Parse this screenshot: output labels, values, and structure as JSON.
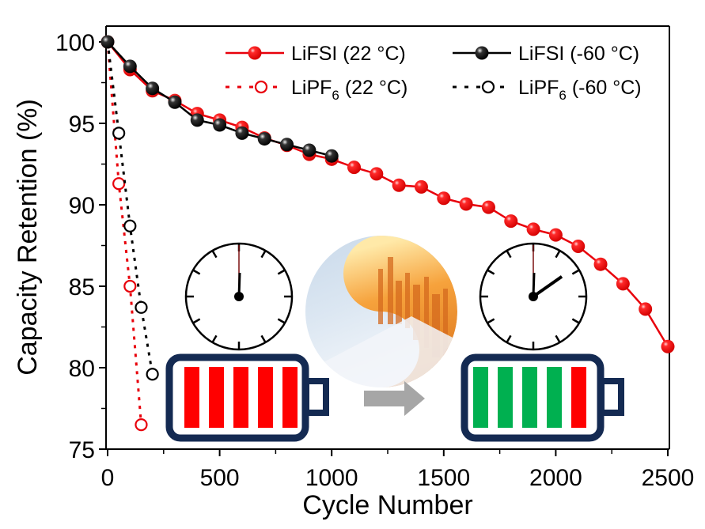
{
  "chart_data": {
    "type": "line",
    "title": "",
    "xlabel": "Cycle Number",
    "ylabel": "Capacity Retention (%)",
    "xlim": [
      0,
      2500
    ],
    "ylim": [
      75,
      100.5
    ],
    "x_ticks": [
      0,
      500,
      1000,
      1500,
      2000,
      2500
    ],
    "x_tick_labels": [
      "0",
      "500",
      "1000",
      "1500",
      "2000",
      "2500"
    ],
    "y_ticks": [
      75,
      80,
      85,
      90,
      95,
      100
    ],
    "y_tick_labels": [
      "75",
      "80",
      "85",
      "90",
      "95",
      "100"
    ],
    "grid": false,
    "legend_position": "top-right",
    "series": [
      {
        "name": "LiFSI (22 °C)",
        "label_main": "LiFSI (22 °C)",
        "label_sub": "",
        "label_tail": "",
        "color": "#e8000b",
        "line_style": "solid",
        "marker": "filled-sphere",
        "x": [
          0,
          100,
          200,
          300,
          400,
          500,
          600,
          700,
          800,
          900,
          1000,
          1100,
          1200,
          1300,
          1400,
          1500,
          1600,
          1700,
          1800,
          1900,
          2000,
          2100,
          2200,
          2300,
          2400,
          2500
        ],
        "values": [
          100,
          98.3,
          97.0,
          96.4,
          95.6,
          95.2,
          94.75,
          94.1,
          93.65,
          93.1,
          92.8,
          92.3,
          91.9,
          91.2,
          91.1,
          90.4,
          90.05,
          89.85,
          89.0,
          88.5,
          88.15,
          87.45,
          86.35,
          85.15,
          83.6,
          81.3
        ]
      },
      {
        "name": "LiFSI (-60 °C)",
        "label_main": "LiFSI (-60 °C)",
        "label_sub": "",
        "label_tail": "",
        "color": "#000000",
        "line_style": "solid",
        "marker": "filled-sphere",
        "x": [
          0,
          100,
          200,
          300,
          400,
          500,
          600,
          700,
          800,
          900,
          1000
        ],
        "values": [
          100,
          98.5,
          97.15,
          96.3,
          95.2,
          94.9,
          94.4,
          94.05,
          93.7,
          93.35,
          93.0
        ]
      },
      {
        "name": "LiPF6 (22 °C)",
        "label_main": "LiPF",
        "label_sub": "6",
        "label_tail": " (22 °C)",
        "color": "#e8000b",
        "line_style": "dotted",
        "marker": "open-circle",
        "x": [
          0,
          50,
          100,
          150
        ],
        "values": [
          100,
          91.3,
          85.0,
          76.5
        ]
      },
      {
        "name": "LiPF6 (-60 °C)",
        "label_main": "LiPF",
        "label_sub": "6",
        "label_tail": " (-60 °C)",
        "color": "#000000",
        "line_style": "dotted",
        "marker": "open-circle",
        "x": [
          0,
          50,
          100,
          150,
          200
        ],
        "values": [
          100,
          94.4,
          88.7,
          83.7,
          79.6
        ]
      }
    ],
    "annotations": {
      "clock_start": {
        "hand_position": "12 o'clock"
      },
      "clock_end": {
        "hand_position": "about 2 o'clock"
      },
      "battery_before": {
        "bars": [
          "red",
          "red",
          "red",
          "red",
          "red"
        ]
      },
      "battery_after": {
        "bars": [
          "green",
          "green",
          "green",
          "green",
          "red"
        ]
      },
      "arrow": "right",
      "center_image": "yin-yang of snow (cold) and hot city skyline"
    }
  },
  "colors": {
    "red": "#e8000b",
    "black": "#000000",
    "battery_outline": "#142a52",
    "battery_red": "#ff0000",
    "battery_green": "#00b050",
    "arrow_gray": "#a6a6a6"
  }
}
